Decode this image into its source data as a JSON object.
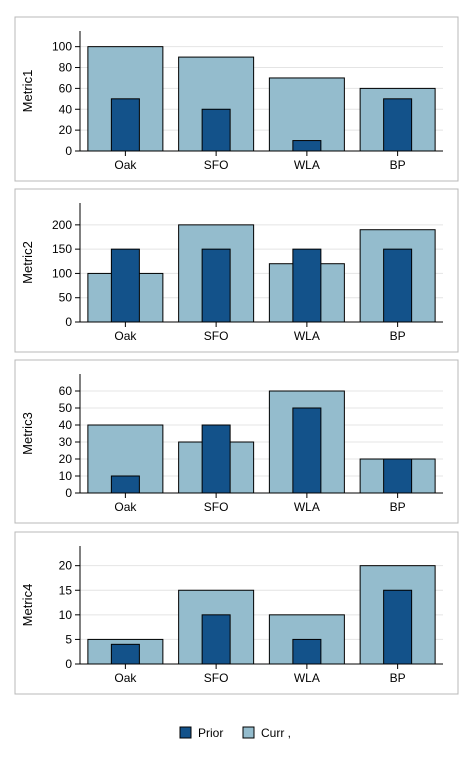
{
  "colors": {
    "prior": "#13528a",
    "curr": "#94bccd",
    "frame": "#b8b8b8",
    "grid": "#e4e4e4",
    "bar_stroke": "#000000",
    "axis_text": "#000000"
  },
  "legend": {
    "position": "bottom-center",
    "items": [
      {
        "label": "Prior",
        "color": "#13528a"
      },
      {
        "label": "Curr ,",
        "color": "#94bccd"
      }
    ]
  },
  "chart_data": [
    {
      "type": "bar",
      "ylabel": "Metric1",
      "categories": [
        "Oak",
        "SFO",
        "WLA",
        "BP"
      ],
      "ylim": [
        0,
        115
      ],
      "yticks": [
        0,
        20,
        40,
        60,
        80,
        100
      ],
      "grid": true,
      "series": [
        {
          "name": "Curr ,",
          "values": [
            100,
            90,
            70,
            60
          ]
        },
        {
          "name": "Prior",
          "values": [
            50,
            40,
            10,
            50
          ]
        }
      ]
    },
    {
      "type": "bar",
      "ylabel": "Metric2",
      "categories": [
        "Oak",
        "SFO",
        "WLA",
        "BP"
      ],
      "ylim": [
        0,
        245
      ],
      "yticks": [
        0,
        50,
        100,
        150,
        200
      ],
      "grid": true,
      "series": [
        {
          "name": "Curr ,",
          "values": [
            100,
            200,
            120,
            190
          ]
        },
        {
          "name": "Prior",
          "values": [
            150,
            150,
            150,
            150
          ]
        }
      ]
    },
    {
      "type": "bar",
      "ylabel": "Metric3",
      "categories": [
        "Oak",
        "SFO",
        "WLA",
        "BP"
      ],
      "ylim": [
        0,
        70
      ],
      "yticks": [
        0,
        10,
        20,
        30,
        40,
        50,
        60
      ],
      "grid": true,
      "series": [
        {
          "name": "Curr ,",
          "values": [
            40,
            30,
            60,
            20
          ]
        },
        {
          "name": "Prior",
          "values": [
            10,
            40,
            50,
            20
          ]
        }
      ]
    },
    {
      "type": "bar",
      "ylabel": "Metric4",
      "categories": [
        "Oak",
        "SFO",
        "WLA",
        "BP"
      ],
      "ylim": [
        0,
        24
      ],
      "yticks": [
        0,
        5,
        10,
        15,
        20
      ],
      "grid": true,
      "series": [
        {
          "name": "Curr ,",
          "values": [
            5,
            15,
            10,
            20
          ]
        },
        {
          "name": "Prior",
          "values": [
            4,
            10,
            5,
            15
          ]
        }
      ]
    }
  ]
}
